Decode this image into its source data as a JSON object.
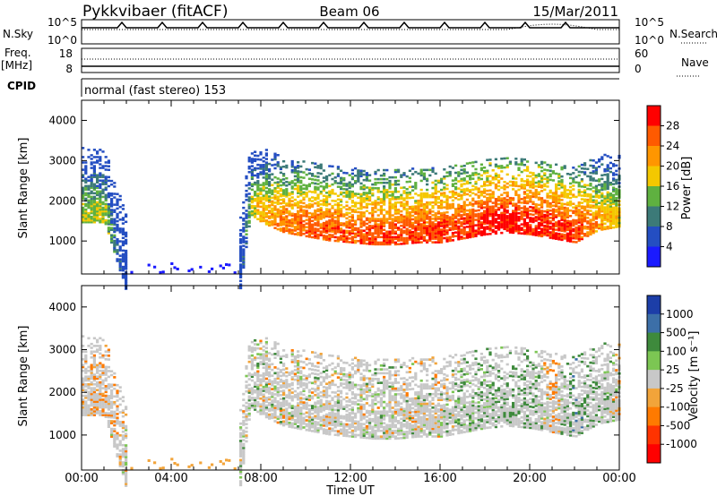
{
  "header": {
    "station": "Pykkvibaer (fitACF)",
    "beam": "Beam 06",
    "date": "15/Mar/2011"
  },
  "top_panels": {
    "nsky_label": "N.Sky",
    "nsky_ticks": [
      "10^5",
      "10^0"
    ],
    "nsearch_ticks": [
      "10^5",
      "10^0"
    ],
    "nsearch_label": "N.Search",
    "freq_label": "Freq.",
    "freq_unit": "[MHz]",
    "freq_ticks": [
      "18",
      "8"
    ],
    "nave_ticks": [
      "60",
      "0"
    ],
    "nave_label": "Nave",
    "cpid_label": "CPID",
    "cpid_text": "normal (fast stereo) 153"
  },
  "axes": {
    "ylabel": "Slant Range [km]",
    "yticks": [
      "4000",
      "3000",
      "2000",
      "1000"
    ],
    "xticks": [
      "00:00",
      "04:00",
      "08:00",
      "12:00",
      "16:00",
      "20:00",
      "00:00"
    ],
    "xlabel": "Time UT"
  },
  "colorbars": {
    "power": {
      "label": "Power [dB]",
      "ticks": [
        "28",
        "24",
        "20",
        "16",
        "12",
        "8",
        "4"
      ],
      "colors": [
        "#ff0000",
        "#ff5a00",
        "#ff9600",
        "#f4c800",
        "#5fb140",
        "#3c7a78",
        "#244ec2",
        "#1a1aff"
      ]
    },
    "velocity": {
      "label": "Velocity [m s⁻¹]",
      "ticks": [
        "1000",
        "500",
        "100",
        "25",
        "-25",
        "-100",
        "-500",
        "-1000"
      ],
      "colors": [
        "#1c3ea8",
        "#3c6fa8",
        "#3e8a3c",
        "#7cc653",
        "#c8c8c8",
        "#f2a43a",
        "#ff7a00",
        "#ff3300",
        "#ff0000"
      ]
    }
  },
  "chart_data": [
    {
      "type": "heatmap",
      "name": "Power",
      "x_range_hours": [
        0,
        24
      ],
      "ylim": [
        180,
        4500
      ],
      "profile": {
        "hours": [
          0,
          1,
          2,
          3,
          4,
          5,
          6,
          7,
          7.5,
          8,
          9,
          10,
          11,
          12,
          13,
          14,
          15,
          16,
          17,
          18,
          19,
          20,
          21,
          22,
          23,
          24
        ],
        "range_km": [
          1800,
          1800,
          0,
          0,
          0,
          0,
          0,
          0,
          2000,
          1800,
          1550,
          1450,
          1350,
          1300,
          1250,
          1250,
          1300,
          1300,
          1400,
          1500,
          1550,
          1500,
          1400,
          1300,
          1600,
          1700
        ],
        "power_db": [
          14,
          14,
          0,
          0,
          0,
          0,
          0,
          0,
          14,
          18,
          22,
          24,
          24,
          24,
          25,
          25,
          25,
          26,
          26,
          28,
          28,
          28,
          27,
          26,
          20,
          16
        ]
      }
    },
    {
      "type": "heatmap",
      "name": "Velocity",
      "x_range_hours": [
        0,
        24
      ],
      "ylim": [
        180,
        4500
      ],
      "profile": {
        "hours": [
          0,
          1,
          2,
          3,
          4,
          5,
          6,
          7,
          7.5,
          8,
          9,
          10,
          11,
          12,
          13,
          14,
          15,
          16,
          17,
          18,
          19,
          20,
          21,
          22,
          23,
          24
        ],
        "range_km": [
          1800,
          1800,
          0,
          0,
          0,
          0,
          0,
          0,
          2000,
          1800,
          1550,
          1450,
          1350,
          1300,
          1250,
          1250,
          1300,
          1300,
          1400,
          1500,
          1550,
          1500,
          1400,
          1300,
          1600,
          1700
        ],
        "velocity_ms": [
          -150,
          -150,
          0,
          0,
          0,
          0,
          0,
          0,
          10,
          0,
          0,
          0,
          5,
          0,
          0,
          0,
          0,
          20,
          150,
          200,
          250,
          300,
          -200,
          500,
          200,
          -50
        ]
      }
    }
  ]
}
